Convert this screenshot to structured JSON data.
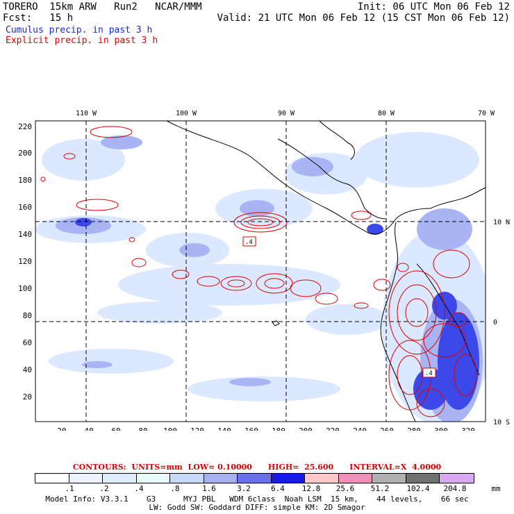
{
  "header": {
    "model": "TORERO  15km ARW   Run2   NCAR/MMM",
    "init": "Init: 06 UTC Mon 06 Feb 12",
    "fcst": "Fcst:   15 h",
    "valid": "Valid: 21 UTC Mon 06 Feb 12 (15 CST Mon 06 Feb 12)",
    "legend_cumulus": "Cumulus precip. in past 3 h",
    "legend_explicit": "Explicit precip. in past 3 h",
    "cumulus_color": "#1a2ad0",
    "explicit_color": "#e00000"
  },
  "map": {
    "top_axis_labels": [
      "110 W",
      "100 W",
      "90 W",
      "80 W",
      "70 W"
    ],
    "right_axis_labels": [
      "10 N",
      "0",
      "10 S"
    ],
    "left_ticks": [
      "220",
      "200",
      "180",
      "160",
      "140",
      "120",
      "100",
      "80",
      "60",
      "40",
      "20"
    ],
    "bottom_ticks": [
      "20",
      "40",
      "60",
      "80",
      "100",
      "120",
      "140",
      "160",
      "180",
      "200",
      "220",
      "240",
      "260",
      "280",
      "300",
      "320"
    ],
    "contour_label_1": ".4",
    "contour_label_2": ".4",
    "land_color": "#ffffff",
    "ocean_color": "#ffffff"
  },
  "contours": {
    "text": "CONTOURS:  UNITS=mm  LOW= 0.10000      HIGH=  25.600      INTERVAL=X  4.0000"
  },
  "colorbar": {
    "colors": [
      "#ffffff",
      "#eef4ff",
      "#e0ecff",
      "#e8fcfc",
      "#c8d8f8",
      "#a8b0f0",
      "#6870ec",
      "#1818e8",
      "#ffc8c8",
      "#f090b8",
      "#b0b0b0",
      "#707070",
      "#d8a8f0"
    ],
    "labels": [
      ".1",
      ".2",
      ".4",
      ".8",
      "1.6",
      "3.2",
      "6.4",
      "12.8",
      "25.6",
      "51.2",
      "102.4",
      "204.8"
    ],
    "unit": "mm"
  },
  "model_info": {
    "line1": "Model Info: V3.3.1    G3      MYJ PBL   WDM 6class  Noah LSM  15 km,    44 levels,    66 sec",
    "line2": "LW: Godd SW: Goddard DIFF: simple KM: 2D Smagor"
  }
}
